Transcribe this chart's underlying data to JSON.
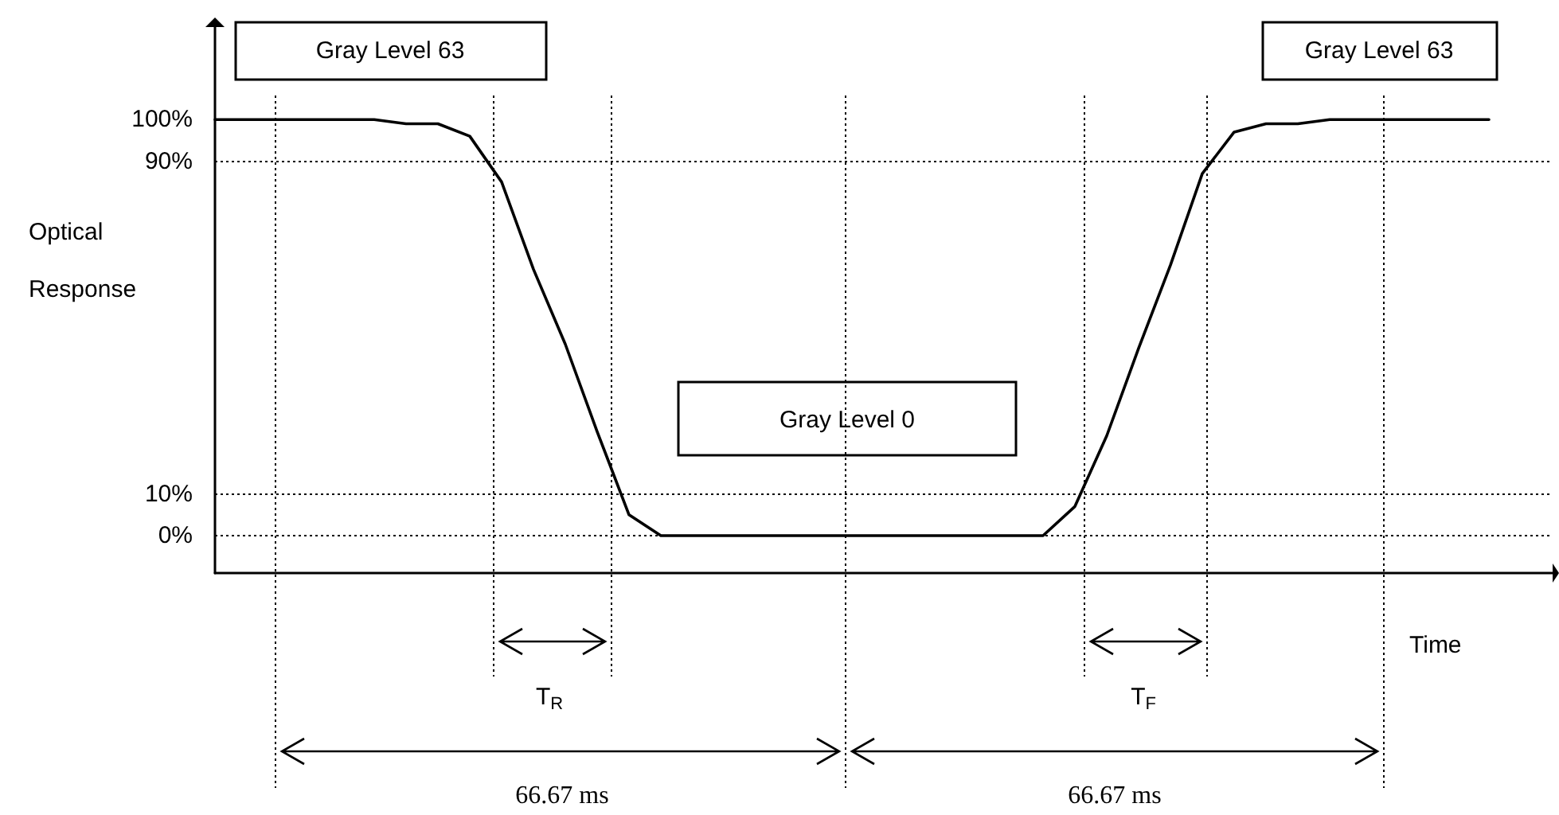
{
  "chart_data": {
    "type": "line",
    "xlabel": "Time",
    "ylabel": "Optical Response",
    "categories": [
      null,
      null,
      null,
      null,
      null,
      null,
      null,
      null,
      null,
      null,
      null,
      null,
      null,
      null,
      null,
      null,
      null,
      null,
      null,
      null,
      null,
      null,
      null,
      null,
      null,
      null,
      null,
      null,
      null,
      null,
      null,
      null,
      null,
      null,
      null,
      null,
      null,
      null,
      null,
      null,
      null,
      null,
      null
    ],
    "series": [
      {
        "color": "#000000",
        "values": [
          100,
          100,
          100,
          100,
          100,
          100,
          99,
          99,
          96,
          85,
          64,
          46,
          25,
          5,
          0,
          0,
          0,
          0,
          0,
          0,
          0,
          0,
          0,
          0,
          0,
          0,
          0,
          7,
          24,
          45,
          65,
          87,
          97,
          99,
          99,
          100,
          100,
          100,
          100,
          100,
          100,
          null,
          null
        ]
      }
    ],
    "ylim": [
      -9,
      123
    ],
    "yticks": [
      {
        "value": 0,
        "label": "0%"
      },
      {
        "value": 10,
        "label": "10%"
      },
      {
        "value": 90,
        "label": "90%"
      },
      {
        "value": 100,
        "label": "100%"
      }
    ],
    "tick_labels": "y",
    "marker": "none",
    "line_style": "solid",
    "ref_lines": [
      {
        "axis": "y",
        "value": 90,
        "line_style": "dotted"
      },
      {
        "axis": "y",
        "value": 10,
        "line_style": "dotted"
      },
      {
        "axis": "y",
        "value": 0,
        "line_style": "dotted"
      }
    ],
    "annotations": [
      "Gray Level 63",
      "Gray Level 63",
      "Gray Level 0",
      "T$_{R}$",
      "T$_{F}$",
      "66.67 ms",
      "66.67 ms"
    ]
  }
}
